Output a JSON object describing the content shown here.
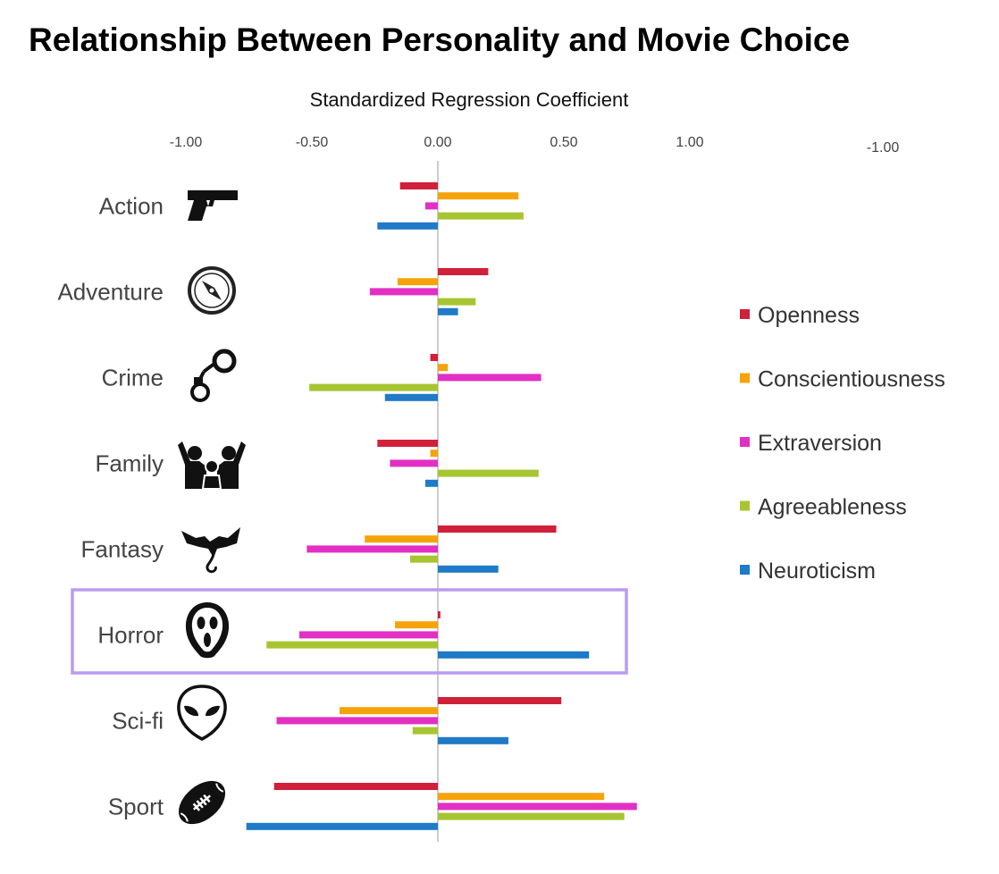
{
  "chart_data": {
    "type": "bar",
    "orientation": "horizontal",
    "title": "Relationship Between Personality and Movie Choice",
    "xlabel": "Standardized Regression Coefficient",
    "x_ticks": [
      "-1.00",
      "-0.50",
      "0.00",
      "0.50",
      "1.00"
    ],
    "extra_tick": "-1.00",
    "xlim": [
      -1.0,
      1.0
    ],
    "categories": [
      "Action",
      "Adventure",
      "Crime",
      "Family",
      "Fantasy",
      "Horror",
      "Sci-fi",
      "Sport"
    ],
    "category_icons": [
      "pistol-icon",
      "compass-icon",
      "handcuffs-icon",
      "family-icon",
      "dragon-icon",
      "ghostface-mask-icon",
      "alien-head-icon",
      "football-icon"
    ],
    "highlighted_category": "Horror",
    "highlight_color": "#b99cf0",
    "legend_position": "right",
    "grid": false,
    "series": [
      {
        "name": "Openness",
        "color": "#d0203a",
        "values": [
          -0.15,
          0.2,
          -0.03,
          -0.24,
          0.47,
          0.01,
          0.49,
          -0.65
        ]
      },
      {
        "name": "Conscientiousness",
        "color": "#f5a30a",
        "values": [
          0.32,
          -0.16,
          0.04,
          -0.03,
          -0.29,
          -0.17,
          -0.39,
          0.66
        ]
      },
      {
        "name": "Extraversion",
        "color": "#e230c4",
        "values": [
          -0.05,
          -0.27,
          0.41,
          -0.19,
          -0.52,
          -0.55,
          -0.64,
          0.79
        ]
      },
      {
        "name": "Agreeableness",
        "color": "#a6c531",
        "values": [
          0.34,
          0.15,
          -0.51,
          0.4,
          -0.11,
          -0.68,
          -0.1,
          0.74
        ]
      },
      {
        "name": "Neuroticism",
        "color": "#1f7ac7",
        "values": [
          -0.24,
          0.08,
          -0.21,
          -0.05,
          0.24,
          0.6,
          0.28,
          -0.76
        ]
      }
    ]
  }
}
